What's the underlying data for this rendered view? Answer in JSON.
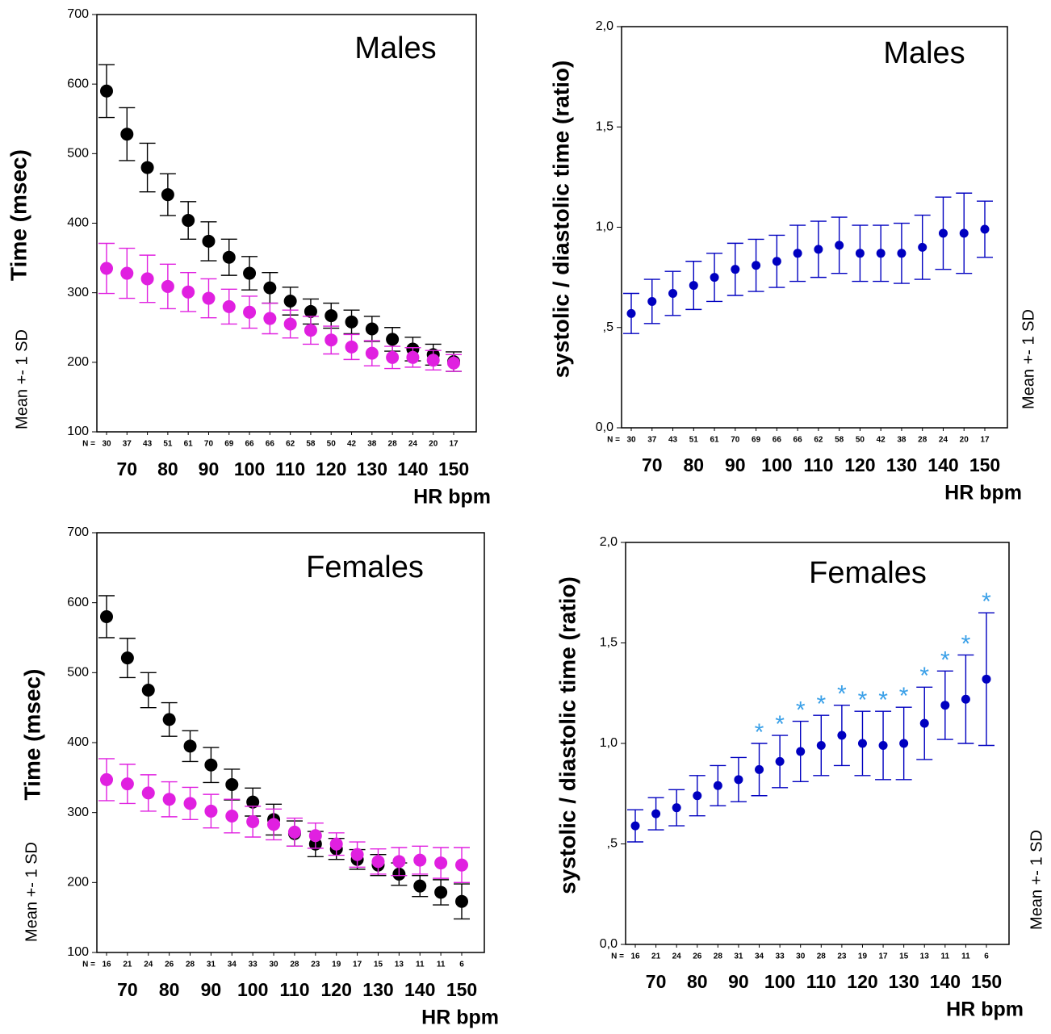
{
  "chart_data": [
    {
      "type": "errorbar",
      "title": "Males",
      "ylabel": "Time (msec)",
      "side_label": "Mean +- 1 SD",
      "xlabel": "HR bpm",
      "n_label": "N =",
      "categories": [
        30,
        37,
        43,
        51,
        61,
        70,
        69,
        66,
        66,
        62,
        58,
        50,
        42,
        38,
        28,
        24,
        20,
        17
      ],
      "x_labels": [
        70,
        80,
        90,
        100,
        110,
        120,
        130,
        140,
        150
      ],
      "ylim": [
        100,
        700
      ],
      "yticks": [
        100,
        200,
        300,
        400,
        500,
        600,
        700
      ],
      "series": [
        {
          "color": "#000000",
          "values": [
            590,
            528,
            480,
            441,
            404,
            374,
            351,
            328,
            307,
            288,
            273,
            267,
            258,
            248,
            233,
            219,
            211,
            201
          ],
          "errors": [
            38,
            38,
            35,
            30,
            27,
            28,
            26,
            24,
            22,
            20,
            18,
            18,
            17,
            18,
            17,
            17,
            15,
            14
          ]
        },
        {
          "color": "#e020e0",
          "values": [
            335,
            328,
            320,
            309,
            301,
            292,
            280,
            272,
            263,
            255,
            246,
            232,
            222,
            213,
            207,
            207,
            203,
            199
          ],
          "errors": [
            36,
            36,
            34,
            32,
            28,
            28,
            25,
            23,
            22,
            20,
            20,
            20,
            18,
            18,
            16,
            14,
            14,
            12
          ]
        }
      ]
    },
    {
      "type": "errorbar",
      "title": "Males",
      "ylabel": "systolic / diastolic time (ratio)",
      "side_label": "Mean +- 1 SD",
      "xlabel": "HR bpm",
      "n_label": "N =",
      "categories": [
        30,
        37,
        43,
        51,
        61,
        70,
        69,
        66,
        66,
        62,
        58,
        50,
        42,
        38,
        28,
        24,
        20,
        17
      ],
      "x_labels": [
        70,
        80,
        90,
        100,
        110,
        120,
        130,
        140,
        150
      ],
      "ylim": [
        0,
        2
      ],
      "yticks": [
        {
          "value": 0,
          "label": "0,0"
        },
        {
          "value": 0.5,
          "label": ",5"
        },
        {
          "value": 1,
          "label": "1,0"
        },
        {
          "value": 1.5,
          "label": "1,5"
        },
        {
          "value": 2,
          "label": "2,0"
        }
      ],
      "series": [
        {
          "color": "#0000c0",
          "values": [
            0.57,
            0.63,
            0.67,
            0.71,
            0.75,
            0.79,
            0.81,
            0.83,
            0.87,
            0.89,
            0.91,
            0.87,
            0.87,
            0.87,
            0.9,
            0.97,
            0.97,
            0.99
          ],
          "errors": [
            0.1,
            0.11,
            0.11,
            0.12,
            0.12,
            0.13,
            0.13,
            0.13,
            0.14,
            0.14,
            0.14,
            0.14,
            0.14,
            0.15,
            0.16,
            0.18,
            0.2,
            0.14
          ]
        }
      ]
    },
    {
      "type": "errorbar",
      "title": "Females",
      "ylabel": "Time (msec)",
      "side_label": "Mean +- 1 SD",
      "xlabel": "HR bpm",
      "n_label": "N =",
      "categories": [
        16,
        21,
        24,
        26,
        28,
        31,
        34,
        33,
        30,
        28,
        23,
        19,
        17,
        15,
        13,
        11,
        11,
        6
      ],
      "x_labels": [
        70,
        80,
        90,
        100,
        110,
        120,
        130,
        140,
        150
      ],
      "ylim": [
        100,
        700
      ],
      "yticks": [
        100,
        200,
        300,
        400,
        500,
        600,
        700
      ],
      "series": [
        {
          "color": "#000000",
          "values": [
            580,
            521,
            475,
            433,
            395,
            368,
            340,
            315,
            290,
            270,
            255,
            248,
            233,
            225,
            212,
            195,
            186,
            173
          ],
          "errors": [
            30,
            28,
            25,
            24,
            22,
            25,
            22,
            20,
            22,
            18,
            18,
            15,
            14,
            15,
            16,
            15,
            18,
            25
          ]
        },
        {
          "color": "#e020e0",
          "values": [
            347,
            341,
            328,
            319,
            313,
            302,
            295,
            287,
            283,
            272,
            267,
            255,
            240,
            230,
            230,
            232,
            228,
            225
          ],
          "errors": [
            30,
            28,
            26,
            25,
            23,
            24,
            24,
            22,
            22,
            20,
            18,
            16,
            18,
            18,
            20,
            20,
            22,
            25
          ]
        }
      ]
    },
    {
      "type": "errorbar",
      "title": "Females",
      "ylabel": "systolic / diastolic time (ratio)",
      "side_label": "Mean +- 1 SD",
      "xlabel": "HR bpm",
      "n_label": "N =",
      "categories": [
        16,
        21,
        24,
        26,
        28,
        31,
        34,
        33,
        30,
        28,
        23,
        19,
        17,
        15,
        13,
        11,
        11,
        6
      ],
      "x_labels": [
        70,
        80,
        90,
        100,
        110,
        120,
        130,
        140,
        150
      ],
      "ylim": [
        0,
        2
      ],
      "yticks": [
        {
          "value": 0,
          "label": "0,0"
        },
        {
          "value": 0.5,
          "label": ",5"
        },
        {
          "value": 1,
          "label": "1,0"
        },
        {
          "value": 1.5,
          "label": "1,5"
        },
        {
          "value": 2,
          "label": "2,0"
        }
      ],
      "series": [
        {
          "color": "#0000c0",
          "marker_color": "#3aa0e8",
          "values": [
            0.59,
            0.65,
            0.68,
            0.74,
            0.79,
            0.82,
            0.87,
            0.91,
            0.96,
            0.99,
            1.04,
            1.0,
            0.99,
            1.0,
            1.1,
            1.19,
            1.22,
            1.32
          ],
          "errors": [
            0.08,
            0.08,
            0.09,
            0.1,
            0.1,
            0.11,
            0.13,
            0.13,
            0.15,
            0.15,
            0.15,
            0.16,
            0.17,
            0.18,
            0.18,
            0.17,
            0.22,
            0.33
          ],
          "markers": [
            null,
            null,
            null,
            null,
            null,
            null,
            "*",
            "*",
            "*",
            "*",
            "*",
            "*",
            "*",
            "*",
            "*",
            "*",
            "*",
            "*"
          ]
        }
      ]
    }
  ]
}
